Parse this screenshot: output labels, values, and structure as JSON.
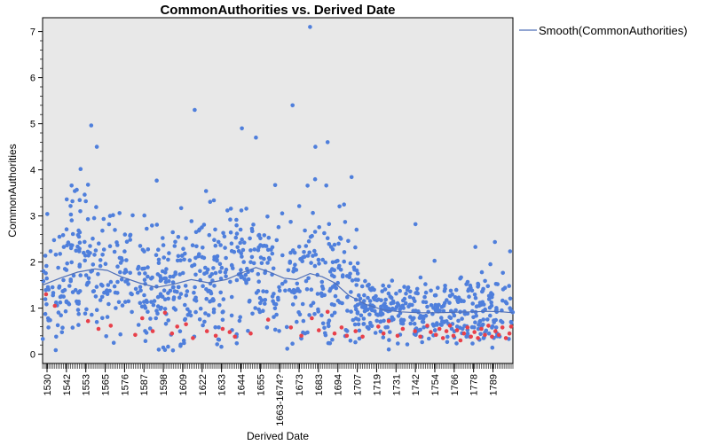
{
  "chart_data": {
    "type": "scatter",
    "title": "CommonAuthorities vs. Derived Date",
    "xlabel": "Derived Date",
    "ylabel": "CommonAuthorities",
    "xlim": [
      1530,
      1799
    ],
    "ylim": [
      -0.2,
      7.3
    ],
    "y_ticks": [
      0,
      1,
      2,
      3,
      4,
      5,
      6,
      7
    ],
    "x_tick_labels": [
      "1530",
      "1542",
      "1553",
      "1565",
      "1576",
      "1587",
      "1598",
      "1609",
      "1622",
      "1633",
      "1644",
      "1655",
      "1663-1674?",
      "1673",
      "1683",
      "1694",
      "1707",
      "1719",
      "1731",
      "1742",
      "1754",
      "1766",
      "1778",
      "1789"
    ],
    "grid": false,
    "plot_background": "#e8e8e8",
    "legend": {
      "position": "right-outside",
      "entries": [
        "Smooth(CommonAuthorities)"
      ]
    },
    "colors": {
      "points_primary": "#4f7fdc",
      "points_secondary": "#e8404a",
      "smooth_line": "#4f6fb8"
    },
    "series": [
      {
        "name": "Smooth(CommonAuthorities)",
        "kind": "line",
        "x": [
          1530,
          1540,
          1550,
          1560,
          1567,
          1575,
          1585,
          1595,
          1605,
          1615,
          1625,
          1635,
          1645,
          1652,
          1660,
          1668,
          1675,
          1683,
          1690,
          1697,
          1705,
          1715,
          1725,
          1735,
          1745,
          1755,
          1765,
          1775,
          1785,
          1793,
          1799
        ],
        "y": [
          1.5,
          1.65,
          1.78,
          1.85,
          1.82,
          1.68,
          1.55,
          1.45,
          1.52,
          1.62,
          1.55,
          1.62,
          1.78,
          1.88,
          1.78,
          1.65,
          1.62,
          1.75,
          1.68,
          1.55,
          1.28,
          1.08,
          0.96,
          0.92,
          0.9,
          0.9,
          0.91,
          0.92,
          0.93,
          0.92,
          0.9
        ]
      },
      {
        "name": "",
        "kind": "points",
        "color": "#e8404a",
        "points": [
          [
            1532,
            1.3
          ],
          [
            1537,
            1.05
          ],
          [
            1556,
            0.72
          ],
          [
            1562,
            0.55
          ],
          [
            1569,
            0.62
          ],
          [
            1583,
            0.42
          ],
          [
            1587,
            0.78
          ],
          [
            1593,
            0.5
          ],
          [
            1600,
            0.9
          ],
          [
            1604,
            0.45
          ],
          [
            1607,
            0.6
          ],
          [
            1612,
            0.65
          ],
          [
            1616,
            0.35
          ],
          [
            1624,
            0.5
          ],
          [
            1629,
            0.4
          ],
          [
            1633,
            0.55
          ],
          [
            1637,
            0.48
          ],
          [
            1640,
            0.38
          ],
          [
            1649,
            0.45
          ],
          [
            1659,
            0.75
          ],
          [
            1672,
            0.58
          ],
          [
            1678,
            0.4
          ],
          [
            1684,
            0.78
          ],
          [
            1688,
            0.52
          ],
          [
            1693,
            0.92
          ],
          [
            1697,
            0.45
          ],
          [
            1701,
            0.58
          ],
          [
            1704,
            0.4
          ],
          [
            1709,
            0.5
          ],
          [
            1713,
            0.38
          ],
          [
            1722,
            0.6
          ],
          [
            1725,
            0.45
          ],
          [
            1728,
            0.72
          ],
          [
            1733,
            0.4
          ],
          [
            1736,
            0.55
          ],
          [
            1743,
            0.5
          ],
          [
            1746,
            0.38
          ],
          [
            1750,
            0.62
          ],
          [
            1752,
            0.48
          ],
          [
            1755,
            0.42
          ],
          [
            1757,
            0.55
          ],
          [
            1759,
            0.35
          ],
          [
            1761,
            0.5
          ],
          [
            1763,
            0.62
          ],
          [
            1765,
            0.4
          ],
          [
            1767,
            0.52
          ],
          [
            1769,
            0.3
          ],
          [
            1771,
            0.45
          ],
          [
            1773,
            0.58
          ],
          [
            1775,
            0.38
          ],
          [
            1777,
            0.48
          ],
          [
            1779,
            0.35
          ],
          [
            1781,
            0.55
          ],
          [
            1783,
            0.42
          ],
          [
            1785,
            0.62
          ],
          [
            1787,
            0.38
          ],
          [
            1789,
            0.5
          ],
          [
            1791,
            0.42
          ],
          [
            1793,
            0.58
          ],
          [
            1795,
            0.35
          ],
          [
            1797,
            0.45
          ],
          [
            1798,
            0.6
          ]
        ]
      }
    ]
  }
}
